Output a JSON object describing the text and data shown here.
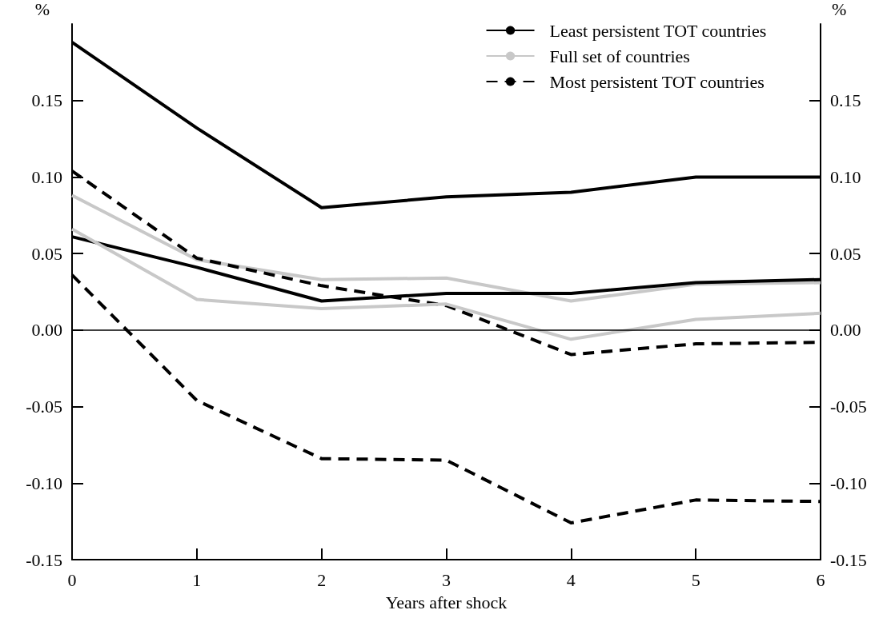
{
  "chart_data": {
    "type": "line",
    "xlabel": "Years after shock",
    "ylabel": "%",
    "y2label": "%",
    "x": [
      0,
      1,
      2,
      3,
      4,
      5,
      6
    ],
    "xlim": [
      0,
      6
    ],
    "xticks": [
      0,
      1,
      2,
      3,
      4,
      5,
      6
    ],
    "ylim": [
      -0.15,
      0.2
    ],
    "yticks": [
      -0.15,
      {
        "value": -0.1,
        "label": "-0.10"
      },
      {
        "value": -0.05,
        "label": "-0.05"
      },
      {
        "value": 0,
        "label": "0.00"
      },
      {
        "value": 0.05,
        "label": "0.05"
      },
      {
        "value": 0.1,
        "label": "0.10"
      },
      0.15
    ],
    "y2lim": [
      -0.15,
      0.2
    ],
    "y2ticks": [
      -0.15,
      {
        "value": -0.1,
        "label": "-0.10"
      },
      {
        "value": -0.05,
        "label": "-0.05"
      },
      {
        "value": 0,
        "label": "0.00"
      },
      {
        "value": 0.05,
        "label": "0.05"
      },
      {
        "value": 0.1,
        "label": "0.10"
      },
      0.15
    ],
    "grid": false,
    "legend": "top right",
    "marker": "none",
    "ref_lines": [
      {
        "axis": "y",
        "value": 0,
        "color": "#000000",
        "line_style": "solid"
      }
    ],
    "series": [
      {
        "name": "Least persistent TOT countries",
        "color": "#000000",
        "line_style": "solid",
        "values": [
          0.188,
          0.132,
          0.08,
          0.087,
          0.09,
          0.1,
          0.1
        ]
      },
      {
        "name": "Full set of countries",
        "color": "#c8c8c8",
        "line_style": "solid",
        "values": [
          0.088,
          0.046,
          0.033,
          0.034,
          0.019,
          0.03,
          0.031
        ]
      },
      {
        "name": "Most persistent TOT countries",
        "color": "#000000",
        "line_style": "dashed",
        "values": [
          0.104,
          0.047,
          0.029,
          0.016,
          -0.016,
          -0.009,
          -0.008
        ]
      },
      {
        "color": "#000000",
        "line_style": "solid",
        "values": [
          0.061,
          0.041,
          0.019,
          0.024,
          0.024,
          0.031,
          0.033
        ]
      },
      {
        "color": "#c8c8c8",
        "line_style": "solid",
        "values": [
          0.066,
          0.02,
          0.014,
          0.017,
          -0.006,
          0.007,
          0.011
        ]
      },
      {
        "color": "#000000",
        "line_style": "dashed",
        "values": [
          0.036,
          -0.046,
          -0.084,
          -0.085,
          -0.126,
          -0.111,
          -0.112
        ]
      }
    ]
  }
}
